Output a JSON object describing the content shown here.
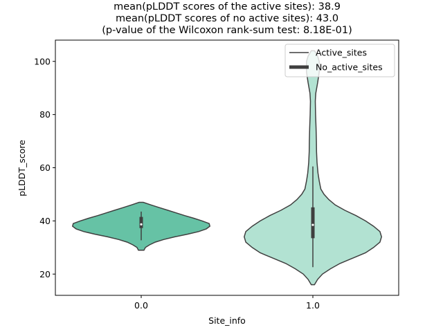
{
  "chart_data": {
    "type": "violin",
    "title_lines": [
      "mean(pLDDT scores of the active sites): 38.9",
      "mean(pLDDT scores of no active sites): 43.0",
      "(p-value of the Wilcoxon rank-sum test: 8.18E-01)"
    ],
    "xlabel": "Site_info",
    "ylabel": "pLDDT_score",
    "categories": [
      "0.0",
      "1.0"
    ],
    "ylim": [
      12,
      108
    ],
    "yticks": [
      20,
      40,
      60,
      80,
      100
    ],
    "legend": {
      "location": "top-right",
      "entries": [
        "Active_sites",
        "No_active_sites"
      ]
    },
    "colors": {
      "violin_0": "#66c2a5",
      "violin_1": "#b2e2d2",
      "edge": "#3f3f3f"
    },
    "violins": [
      {
        "category": "0.0",
        "min": 29,
        "max": 47,
        "q1": 37.3,
        "median": 38.7,
        "q3": 41.5,
        "whisker_low": 32.7,
        "whisker_high": 43.5,
        "density": [
          [
            29,
            4
          ],
          [
            30,
            6
          ],
          [
            31,
            12
          ],
          [
            32,
            20
          ],
          [
            33,
            32
          ],
          [
            34,
            48
          ],
          [
            35,
            66
          ],
          [
            36,
            82
          ],
          [
            37,
            93
          ],
          [
            38,
            98
          ],
          [
            39,
            97
          ],
          [
            40,
            87
          ],
          [
            41,
            75
          ],
          [
            42,
            62
          ],
          [
            43,
            50
          ],
          [
            44,
            38
          ],
          [
            45,
            26
          ],
          [
            46,
            14
          ],
          [
            47,
            3
          ]
        ]
      },
      {
        "category": "1.0",
        "min": 16,
        "max": 104,
        "q1": 33.5,
        "median": 38.5,
        "q3": 45.1,
        "whisker_low": 22.6,
        "whisker_high": 60.5,
        "density": [
          [
            16,
            1
          ],
          [
            18,
            3
          ],
          [
            20,
            6
          ],
          [
            22,
            11
          ],
          [
            24,
            17
          ],
          [
            26,
            25
          ],
          [
            28,
            33
          ],
          [
            30,
            38
          ],
          [
            32,
            42
          ],
          [
            34,
            43
          ],
          [
            36,
            42
          ],
          [
            38,
            38
          ],
          [
            40,
            33
          ],
          [
            42,
            27
          ],
          [
            44,
            20
          ],
          [
            46,
            14
          ],
          [
            48,
            10
          ],
          [
            50,
            7
          ],
          [
            52,
            5
          ],
          [
            55,
            4
          ],
          [
            58,
            3.2
          ],
          [
            62,
            2.6
          ],
          [
            66,
            2.3
          ],
          [
            70,
            2.2
          ],
          [
            75,
            2
          ],
          [
            80,
            1.7
          ],
          [
            85,
            1.5
          ],
          [
            88,
            1.8
          ],
          [
            92,
            3
          ],
          [
            96,
            4
          ],
          [
            100,
            4
          ],
          [
            102,
            3
          ],
          [
            104,
            1
          ]
        ]
      }
    ]
  }
}
